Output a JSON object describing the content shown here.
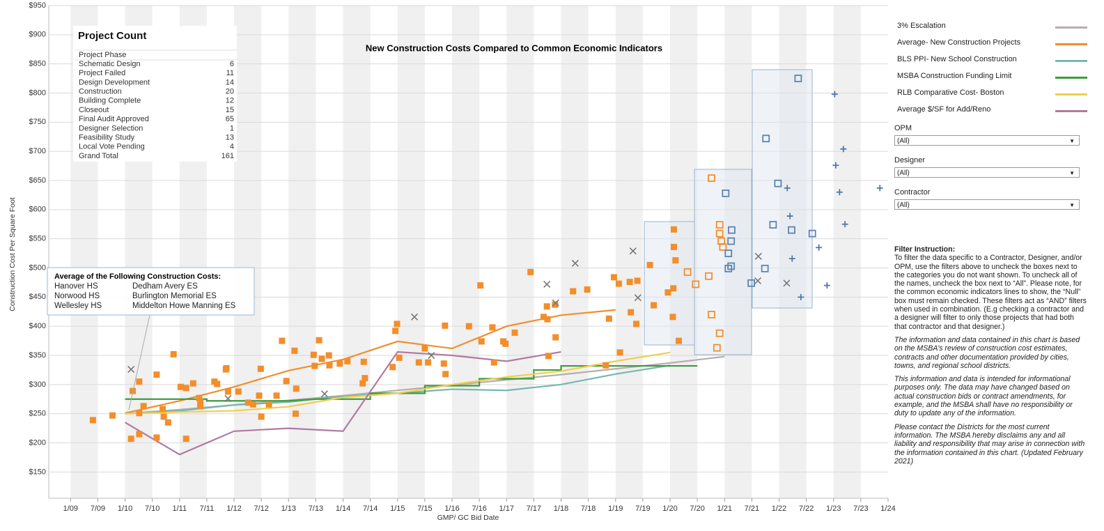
{
  "chart_data": {
    "type": "line",
    "title": "New Construction Costs Compared to Common Economic Indicators",
    "x_label": "GMP/ GC Bid Date",
    "y_label": "Construction Cost Per Square Foot",
    "xlim": [
      2008.6,
      2024.0
    ],
    "ylim": [
      105,
      950
    ],
    "grid": true,
    "legend": "right",
    "xticks": [
      {
        "value": 2009,
        "label": "1/09"
      },
      {
        "value": 2009.5,
        "label": "7/09"
      },
      {
        "value": 2010,
        "label": "1/10"
      },
      {
        "value": 2010.5,
        "label": "7/10"
      },
      {
        "value": 2011,
        "label": "1/11"
      },
      {
        "value": 2011.5,
        "label": "7/11"
      },
      {
        "value": 2012,
        "label": "1/12"
      },
      {
        "value": 2012.5,
        "label": "7/12"
      },
      {
        "value": 2013,
        "label": "1/13"
      },
      {
        "value": 2013.5,
        "label": "7/13"
      },
      {
        "value": 2014,
        "label": "1/14"
      },
      {
        "value": 2014.5,
        "label": "7/14"
      },
      {
        "value": 2015,
        "label": "1/15"
      },
      {
        "value": 2015.5,
        "label": "7/15"
      },
      {
        "value": 2016,
        "label": "1/16"
      },
      {
        "value": 2016.5,
        "label": "7/16"
      },
      {
        "value": 2017,
        "label": "1/17"
      },
      {
        "value": 2017.5,
        "label": "7/17"
      },
      {
        "value": 2018,
        "label": "1/18"
      },
      {
        "value": 2018.5,
        "label": "7/18"
      },
      {
        "value": 2019,
        "label": "1/19"
      },
      {
        "value": 2019.5,
        "label": "7/19"
      },
      {
        "value": 2020,
        "label": "1/20"
      },
      {
        "value": 2020.5,
        "label": "7/20"
      },
      {
        "value": 2021,
        "label": "1/21"
      },
      {
        "value": 2021.5,
        "label": "7/21"
      },
      {
        "value": 2022,
        "label": "1/22"
      },
      {
        "value": 2022.5,
        "label": "7/22"
      },
      {
        "value": 2023,
        "label": "1/23"
      },
      {
        "value": 2023.5,
        "label": "7/23"
      },
      {
        "value": 2024,
        "label": "1/24"
      }
    ],
    "yticks": [
      {
        "value": 150,
        "label": "$150"
      },
      {
        "value": 200,
        "label": "$200"
      },
      {
        "value": 250,
        "label": "$250"
      },
      {
        "value": 300,
        "label": "$300"
      },
      {
        "value": 350,
        "label": "$350"
      },
      {
        "value": 400,
        "label": "$400"
      },
      {
        "value": 450,
        "label": "$450"
      },
      {
        "value": 500,
        "label": "$500"
      },
      {
        "value": 550,
        "label": "$550"
      },
      {
        "value": 600,
        "label": "$600"
      },
      {
        "value": 650,
        "label": "$650"
      },
      {
        "value": 700,
        "label": "$700"
      },
      {
        "value": 750,
        "label": "$750"
      },
      {
        "value": 800,
        "label": "$800"
      },
      {
        "value": 850,
        "label": "$850"
      },
      {
        "value": 900,
        "label": "$900"
      },
      {
        "value": 950,
        "label": "$950"
      }
    ],
    "series": [
      {
        "name": "3% Escalation",
        "color": "#b5aeac",
        "x": [
          2010,
          2011,
          2012,
          2013,
          2014,
          2015,
          2016,
          2017,
          2018,
          2019,
          2020,
          2021
        ],
        "values": [
          250,
          257,
          265,
          273,
          281,
          290,
          299,
          308,
          317,
          327,
          337,
          348
        ]
      },
      {
        "name": "Average- New Construction Projects",
        "color": "#f28e2b",
        "x": [
          2010,
          2011,
          2012,
          2013,
          2014,
          2015,
          2016,
          2017,
          2018,
          2019
        ],
        "values": [
          251,
          272,
          296,
          324,
          343,
          374,
          362,
          400,
          419,
          428
        ]
      },
      {
        "name": "BLS PPI- New School Construction",
        "color": "#76b7b2",
        "x": [
          2010,
          2011,
          2012,
          2013,
          2014,
          2015,
          2016,
          2017,
          2018,
          2019,
          2020
        ],
        "values": [
          250,
          255,
          265,
          270,
          280,
          285,
          292,
          290,
          300,
          318,
          333
        ]
      },
      {
        "name": "MSBA Construction Funding Limit",
        "color": "#3f9b3f",
        "x": [
          2010,
          2011.5,
          2011.5,
          2013,
          2013.5,
          2014.5,
          2014.5,
          2015.5,
          2015.5,
          2016.5,
          2016.5,
          2017.5,
          2017.5,
          2018,
          2018,
          2020.5
        ],
        "values": [
          275,
          275,
          272,
          272,
          275,
          275,
          285,
          285,
          298,
          298,
          310,
          310,
          325,
          325,
          332,
          332
        ]
      },
      {
        "name": "RLB Comparative Cost- Boston",
        "color": "#f1ce4b",
        "x": [
          2010,
          2011,
          2012,
          2013,
          2014,
          2015,
          2016,
          2017,
          2018,
          2019,
          2020
        ],
        "values": [
          250,
          253,
          255,
          262,
          278,
          285,
          300,
          313,
          323,
          340,
          355
        ]
      },
      {
        "name": "Average $/SF for Add/Reno",
        "color": "#b07aa1",
        "x": [
          2010,
          2011,
          2012,
          2013,
          2014,
          2015,
          2016,
          2017,
          2018
        ],
        "values": [
          235,
          180,
          220,
          225,
          220,
          356,
          350,
          340,
          356
        ]
      }
    ],
    "points": [
      {
        "marker": "square-filled",
        "color": "#f28e2b",
        "x": [
          2009.41,
          2009.77,
          2010.11,
          2010.14,
          2010.26,
          2010.26,
          2010.26,
          2010.34,
          2010.58,
          2010.58,
          2010.69,
          2010.71,
          2010.79,
          2010.89,
          2011.02,
          2011.12,
          2011.12,
          2011.25,
          2011.36,
          2011.38,
          2011.38,
          2011.64,
          2011.69,
          2011.85,
          2011.86,
          2011.89,
          2012.08,
          2012.26,
          2012.35,
          2012.46,
          2012.49,
          2012.5,
          2012.64,
          2012.78,
          2012.88,
          2012.96,
          2013.11,
          2013.14,
          2013.13,
          2013.46,
          2013.48,
          2013.56,
          2013.61,
          2013.74,
          2013.75,
          2013.94,
          2014.08,
          2014.36,
          2014.38,
          2014.4,
          2014.91,
          2014.96,
          2014.99,
          2015.03,
          2015.39,
          2015.5,
          2015.56,
          2015.85,
          2015.87,
          2015.88,
          2016.31,
          2016.52,
          2016.54,
          2016.74,
          2016.77,
          2016.94,
          2016.98,
          2017.15,
          2017.44,
          2017.68,
          2017.74,
          2017.75,
          2017.77,
          2017.9,
          2017.89,
          2018.22,
          2018.48,
          2018.82,
          2018.97,
          2019.06,
          2019.08,
          2018.88,
          2019.26,
          2019.28,
          2019.38,
          2019.4,
          2019.63,
          2019.7,
          2019.96,
          2020.05,
          2020.06,
          2020.07,
          2020.07,
          2020.1,
          2020.16
        ],
        "values": [
          239,
          247,
          207,
          289,
          305,
          251,
          215,
          263,
          209,
          317,
          258,
          245,
          235,
          352,
          296,
          207,
          294,
          302,
          277,
          263,
          270,
          305,
          301,
          326,
          328,
          288,
          288,
          269,
          266,
          281,
          327,
          245,
          266,
          281,
          375,
          306,
          358,
          293,
          250,
          351,
          332,
          376,
          344,
          350,
          333,
          336,
          340,
          302,
          339,
          311,
          330,
          392,
          404,
          346,
          338,
          362,
          338,
          336,
          401,
          318,
          400,
          470,
          374,
          398,
          338,
          374,
          370,
          389,
          493,
          416,
          434,
          412,
          349,
          381,
          437,
          460,
          463,
          333,
          484,
          473,
          355,
          413,
          476,
          424,
          404,
          478,
          505,
          436,
          458,
          416,
          465,
          566,
          536,
          513,
          375
        ]
      },
      {
        "marker": "square-open",
        "color": "#f28e2b",
        "x": [
          2020.32,
          2020.47,
          2020.71,
          2020.76,
          2020.76,
          2020.86,
          2020.91,
          2020.91,
          2020.91,
          2020.94,
          2020.97
        ],
        "values": [
          493,
          472,
          486,
          654,
          420,
          363,
          388,
          574,
          559,
          546,
          536
        ]
      },
      {
        "marker": "square-open",
        "color": "#5b84b1",
        "x": [
          2021.02,
          2021.07,
          2021.07,
          2021.13,
          2021.12,
          2021.12,
          2021.49,
          2021.74,
          2021.76,
          2021.89,
          2021.98,
          2022.23,
          2022.35,
          2022.61
        ],
        "values": [
          628,
          525,
          499,
          565,
          546,
          503,
          474,
          499,
          722,
          574,
          645,
          565,
          825,
          559
        ]
      },
      {
        "marker": "plus",
        "color": "#4e79a7",
        "x": [
          2022.15,
          2022.2,
          2022.24,
          2022.4,
          2022.73,
          2022.88,
          2023.02,
          2023.04,
          2023.18,
          2023.11,
          2023.21,
          2023.85
        ],
        "values": [
          637,
          589,
          516,
          450,
          535,
          470,
          798,
          676,
          704,
          630,
          575,
          637
        ]
      },
      {
        "marker": "cross",
        "color": "#777777",
        "x": [
          2010.11,
          2011.89,
          2013.66,
          2015.31,
          2015.62,
          2017.74,
          2017.9,
          2018.26,
          2019.32,
          2019.41,
          2021.62,
          2021.61,
          2022.14
        ],
        "values": [
          326,
          276,
          284,
          416,
          350,
          472,
          440,
          508,
          529,
          449,
          520,
          478,
          474
        ]
      }
    ]
  },
  "project_count": {
    "title": "Project Count",
    "header": "Project Phase",
    "rows": [
      [
        "Schematic Design",
        "6"
      ],
      [
        "Project Failed",
        "11"
      ],
      [
        "Design Development",
        "14"
      ],
      [
        "Construction",
        "20"
      ],
      [
        "Building Complete",
        "12"
      ],
      [
        "Closeout",
        "15"
      ],
      [
        "Final Audit Approved",
        "65"
      ],
      [
        "Designer Selection",
        "1"
      ],
      [
        "Feasibility Study",
        "13"
      ],
      [
        "Local Vote Pending",
        "4"
      ],
      [
        "Grand Total",
        "161"
      ]
    ]
  },
  "annotation": {
    "title": "Average of the Following Construction Costs:",
    "items": [
      "Hanover HS",
      "Dedham Avery ES",
      "Norwood HS",
      "Burlington Memorial ES",
      "Wellesley HS",
      "Middelton Howe Manning ES"
    ]
  },
  "filters": [
    {
      "label": "OPM",
      "value": "(All)"
    },
    {
      "label": "Designer",
      "value": "(All)"
    },
    {
      "label": "Contractor",
      "value": "(All)"
    }
  ],
  "instructions": {
    "title": "Filter Instruction:",
    "paragraphs": [
      "To filter the data specific to a Contractor, Designer, and/or OPM, use the filters above to uncheck the boxes next to the categories you do not want shown. To uncheck all of the names, uncheck the box next to “All”. Please note, for the common economic indicators lines to show, the “Null” box must remain checked. These filters act as “AND” filters when used in combination. (E.g checking a contractor and a designer will filter to only those projects that had both that contractor and that designer.)",
      "The information and data contained in this chart is based on the MSBA’s review of construction cost estimates, contracts and other documentation provided by cities, towns, and regional school districts.",
      "This information and data is intended for informational purposes only. The data may have changed based on actual construction bids or contract amendments, for example, and the MSBA shall have no responsibility or duty to update any of the information.",
      "Please contact the Districts for the most current information. The MSBA hereby disclaims any and all liability and responsibility that may arise in connection with the information contained in this chart.  (Updated February 2021)"
    ]
  }
}
